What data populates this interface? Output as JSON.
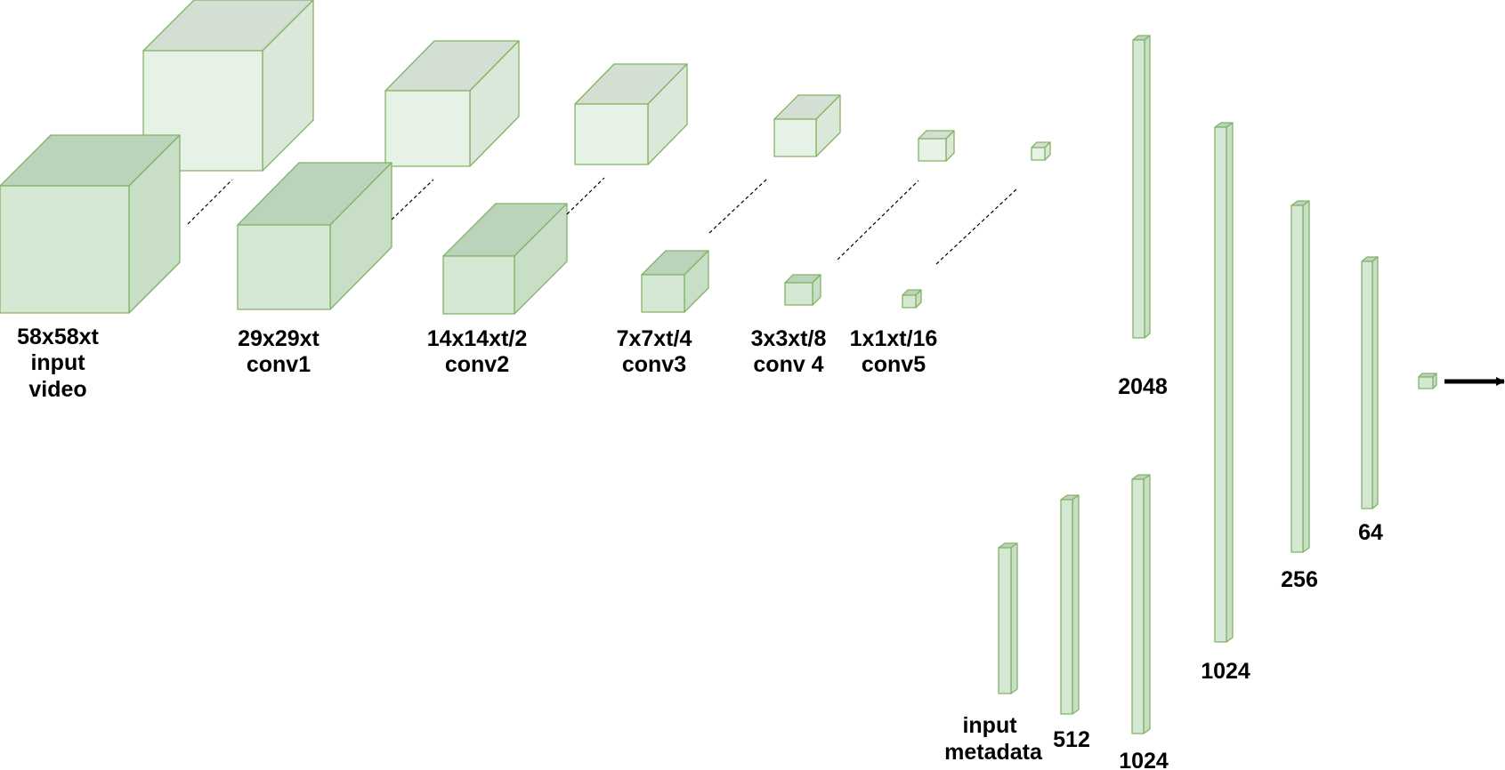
{
  "colors": {
    "front": "#d5e8d4",
    "top": "#bcd3bb",
    "side": "#c8dec7",
    "front_light": "#e6f2e5",
    "top_light": "#d3dfd2",
    "side_light": "#dae8d9",
    "stroke": "#82b366",
    "arrow": "#000000"
  },
  "video_branch": {
    "stages": [
      {
        "lines": [
          "58x58xt",
          "input",
          "video"
        ]
      },
      {
        "lines": [
          "29x29xt",
          "conv1"
        ]
      },
      {
        "lines": [
          "14x14xt/2",
          "conv2"
        ]
      },
      {
        "lines": [
          "7x7xt/4",
          "conv3"
        ]
      },
      {
        "lines": [
          "3x3xt/8",
          "conv 4"
        ]
      },
      {
        "lines": [
          "1x1xt/16",
          "conv5"
        ]
      }
    ]
  },
  "video_fc": {
    "layers": [
      {
        "label": "2048"
      }
    ]
  },
  "metadata_branch": {
    "input_label": [
      "input",
      "metadata"
    ],
    "layers": [
      {
        "label": "512"
      },
      {
        "label": "1024"
      }
    ]
  },
  "merged_fc": {
    "layers": [
      {
        "label": "1024"
      },
      {
        "label": "256"
      },
      {
        "label": "64"
      }
    ]
  },
  "output": {
    "arrow_icon": "right-arrow-icon"
  }
}
